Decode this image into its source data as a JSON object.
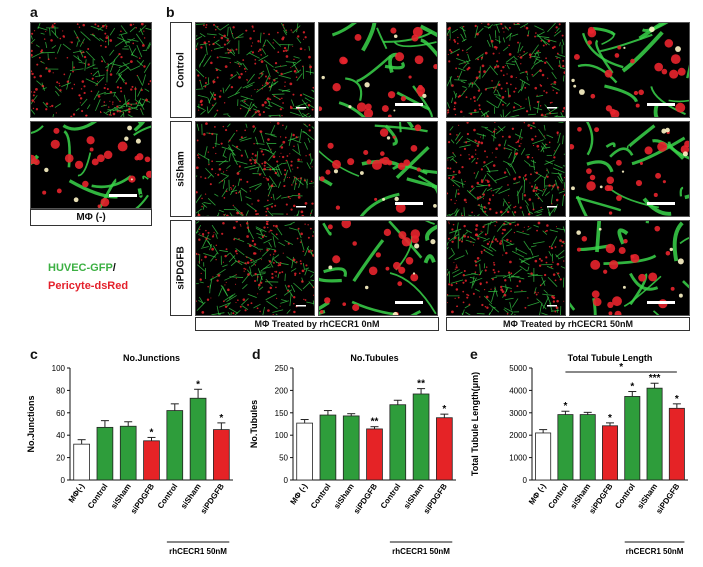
{
  "panels": {
    "a": "a",
    "b": "b",
    "c": "c",
    "d": "d",
    "e": "e"
  },
  "panel_a": {
    "label": "MΦ (-)"
  },
  "legend": {
    "green": "HUVEC-GFP",
    "slash": "/",
    "red": "Pericyte-dsRed"
  },
  "rows": [
    "Control",
    "siSham",
    "siPDGFB"
  ],
  "treatments": [
    "MΦ Treated by rhCECR1 0nM",
    "MΦ Treated by rhCECR1 50nM"
  ],
  "colors": {
    "white": "#ffffff",
    "green": "#2e9d3b",
    "red": "#e52326",
    "tubule": "#39d34a",
    "pericyte": "#e8232c"
  },
  "chart_data": [
    {
      "type": "bar",
      "title": "No.Junctions",
      "ylabel": "No.Junctions",
      "categories": [
        "MΦ(-)",
        "Control",
        "siSham",
        "siPDGFB",
        "Control",
        "siSham",
        "siPDGFB"
      ],
      "values": [
        32,
        47,
        48,
        35,
        62,
        73,
        45
      ],
      "errors": [
        4,
        6,
        4,
        3,
        6,
        8,
        6
      ],
      "bar_colors": [
        "white",
        "green",
        "green",
        "red",
        "green",
        "green",
        "red"
      ],
      "significance": [
        "",
        "",
        "",
        "*",
        "",
        "*",
        "*"
      ],
      "ylim": [
        0,
        100
      ],
      "yticks": [
        0,
        20,
        40,
        60,
        80,
        100
      ],
      "group_label": "rhCECR1 50nM"
    },
    {
      "type": "bar",
      "title": "No.Tubules",
      "ylabel": "No.Tubules",
      "categories": [
        "MΦ (-)",
        "Control",
        "siSham",
        "siPDGFB",
        "Control",
        "siSham",
        "siPDGFB"
      ],
      "values": [
        127,
        145,
        143,
        114,
        168,
        192,
        139
      ],
      "errors": [
        8,
        10,
        5,
        5,
        10,
        12,
        8
      ],
      "bar_colors": [
        "white",
        "green",
        "green",
        "red",
        "green",
        "green",
        "red"
      ],
      "significance": [
        "",
        "",
        "",
        "**",
        "",
        "**",
        "*"
      ],
      "ylim": [
        0,
        250
      ],
      "yticks": [
        0,
        50,
        100,
        150,
        200,
        250
      ],
      "group_label": "rhCECR1 50nM"
    },
    {
      "type": "bar",
      "title": "Total Tubule Length",
      "ylabel": "Total Tubule Length(μm)",
      "categories": [
        "MΦ (-)",
        "Control",
        "siSham",
        "siPDGFB",
        "Control",
        "siSham",
        "siPDGFB"
      ],
      "values": [
        2100,
        2920,
        2920,
        2420,
        3730,
        4100,
        3200
      ],
      "errors": [
        150,
        150,
        100,
        130,
        220,
        220,
        200
      ],
      "bar_colors": [
        "white",
        "green",
        "green",
        "red",
        "green",
        "green",
        "red"
      ],
      "significance": [
        "",
        "*",
        "",
        "*",
        "*",
        "***",
        "*"
      ],
      "bracket": {
        "from": 1,
        "to": 6,
        "label": "*"
      },
      "ylim": [
        0,
        5000
      ],
      "yticks": [
        0,
        1000,
        2000,
        3000,
        4000,
        5000
      ],
      "group_label": "rhCECR1 50nM"
    }
  ]
}
